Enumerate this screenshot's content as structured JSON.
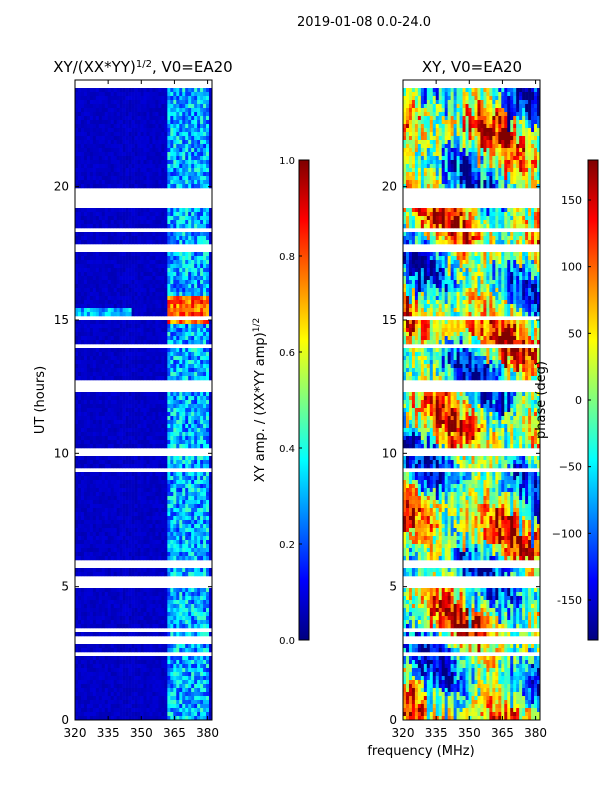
{
  "figure": {
    "suptitle": "2019-01-08 0.0-24.0",
    "xlabel": "frequency (MHz)"
  },
  "chart_data": [
    {
      "type": "heatmap",
      "title": "XY/(XX*YY)",
      "title_sup": "1/2",
      "title_suffix": ", V0=EA20",
      "ylabel": "UT (hours)",
      "xlim": [
        320,
        382
      ],
      "ylim": [
        0,
        24
      ],
      "xticks": [
        320,
        335,
        350,
        365,
        380
      ],
      "yticks": [
        0,
        5,
        10,
        15,
        20
      ],
      "colormap": "jet",
      "colorbar": {
        "label": "XY amp. / (XX*YY amp)",
        "label_sup": "1/2",
        "range": [
          0.0,
          1.0
        ],
        "ticks": [
          "0.0",
          "0.2",
          "0.4",
          "0.6",
          "0.8",
          "1.0"
        ]
      },
      "features": {
        "active_band_mhz": [
          362,
          380
        ],
        "high_amplitude_time_h": [
          14.8,
          15.9
        ],
        "background_level": 0.05
      }
    },
    {
      "type": "heatmap",
      "title": "XY, V0=EA20",
      "ylabel": "",
      "xlim": [
        320,
        382
      ],
      "ylim": [
        0,
        24
      ],
      "xticks": [
        320,
        335,
        350,
        365,
        380
      ],
      "yticks": [
        0,
        5,
        10,
        15,
        20
      ],
      "colormap": "jet",
      "colorbar": {
        "label": "phase (deg)",
        "range": [
          -180,
          180
        ],
        "ticks": [
          "-150",
          "−100",
          "−50",
          "0",
          "50",
          "100",
          "150"
        ]
      }
    }
  ]
}
